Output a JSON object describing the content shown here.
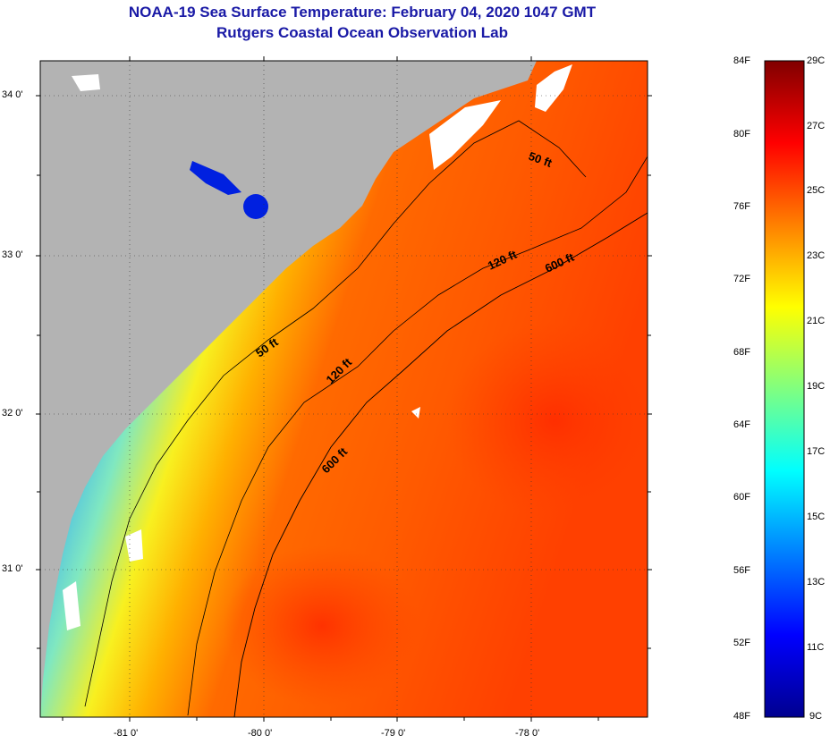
{
  "title": "NOAA-19 Sea Surface Temperature:  February 04, 2020 1047 GMT",
  "subtitle": "Rutgers Coastal Ocean Observation Lab",
  "map": {
    "latitude_labels": [
      "34 0'",
      "33 0'",
      "32 0'",
      "31 0'"
    ],
    "longitude_labels": [
      "-81 0'",
      "-80 0'",
      "-79 0'",
      "-78 0'"
    ],
    "colors": {
      "land": "#b3b3b3",
      "clouds": "#ffffff",
      "coast_line": "#000000"
    },
    "isobaths": [
      {
        "label": "50 ft"
      },
      {
        "label": "50 ft"
      },
      {
        "label": "120 ft"
      },
      {
        "label": "120 ft"
      },
      {
        "label": "600 ft"
      },
      {
        "label": "600 ft"
      }
    ]
  },
  "colorbar": {
    "fahrenheit_labels": [
      "84F",
      "80F",
      "76F",
      "72F",
      "68F",
      "64F",
      "60F",
      "56F",
      "52F",
      "48F"
    ],
    "celsius_labels": [
      "29C",
      "27C",
      "25C",
      "23C",
      "21C",
      "19C",
      "17C",
      "15C",
      "13C",
      "11C",
      "9C"
    ],
    "colors": [
      "#00008f",
      "#0000ff",
      "#0080ff",
      "#00ffff",
      "#80ff80",
      "#ffff00",
      "#ff8000",
      "#ff0000",
      "#800000"
    ]
  }
}
